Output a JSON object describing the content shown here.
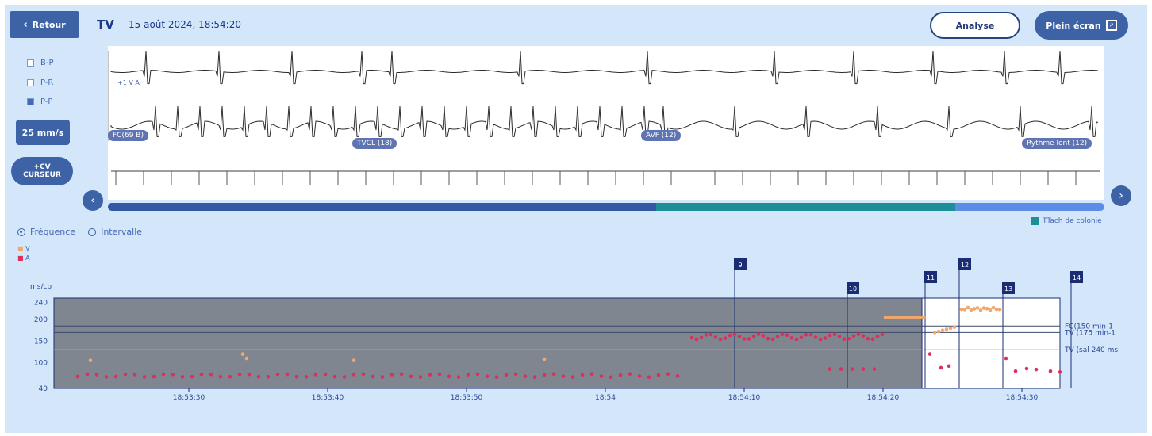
{
  "header": {
    "back_label": "Retour",
    "title": "TV",
    "datetime": "15 août 2024, 18:54:20",
    "analyse_label": "Analyse",
    "fullscreen_label": "Plein écran"
  },
  "leads": {
    "items": [
      {
        "label": "B-P"
      },
      {
        "label": "P-R"
      },
      {
        "label": "P-P"
      }
    ]
  },
  "controls": {
    "speed_label": "25 mm/s",
    "cursor_label_top": "+CV",
    "cursor_label_bottom": "CURSEUR"
  },
  "ecg": {
    "annotation_small": "+1 V A",
    "tags": [
      "FC(69 B)",
      "TVCL (18)",
      "AVF (12)",
      "Rythme lent (12)"
    ],
    "progress_legend": "TTach de colonie",
    "progress_fraction": 0.55
  },
  "toggle": {
    "option1": "Fréquence",
    "option2": "Intervalle"
  },
  "chart_data": {
    "type": "scatter",
    "ylabel": "ms/cp",
    "legend": [
      "V",
      "A"
    ],
    "y_ticks": [
      40,
      100,
      150,
      200,
      240
    ],
    "ylim": [
      40,
      250
    ],
    "x_ticks": [
      "18:53:30",
      "18:53:40",
      "18:53:50",
      "18:54",
      "18:54:10",
      "18:54:20",
      "18:54:30"
    ],
    "reference_lines": [
      {
        "label": "FC(150 min-1",
        "value": 185
      },
      {
        "label": "TV (175 min-1",
        "value": 170
      },
      {
        "label": "TV (sal 240 ms",
        "value": 130
      }
    ],
    "markers": [
      "9",
      "10",
      "11",
      "12",
      "13",
      "14"
    ],
    "colors": {
      "V": "#f0a86e",
      "A": "#d9305c",
      "shaded": "#7f8690"
    }
  }
}
